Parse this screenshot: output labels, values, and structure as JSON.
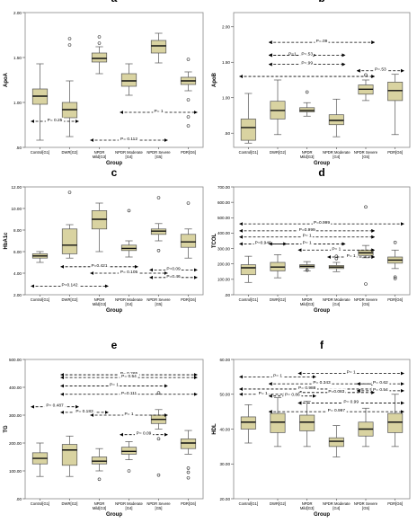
{
  "figure": {
    "group_labels": [
      "Control[G1]",
      "DWR[G2]",
      "NPDR Mild[G3]",
      "NPDR Moderate [G4]",
      "NPDR Severe [G5]",
      "PDR[G6]"
    ],
    "group_axis_label": "Group"
  },
  "colors": {
    "box_fill": "#d9d3a1",
    "box_stroke": "#555555",
    "median": "#111111",
    "plot_bg": "#ffffff",
    "arrow": "#000000"
  },
  "chart_data": [
    {
      "panel": "a",
      "type": "box",
      "ylabel": "ApoA",
      "ylim": [
        0.5,
        2.0
      ],
      "ticks": [
        0.5,
        1.0,
        1.5,
        2.0
      ],
      "tick_labels": [
        ".50",
        "1.00",
        "1.50",
        "2.00"
      ],
      "boxes": [
        {
          "min": 0.58,
          "q1": 0.98,
          "median": 1.07,
          "q3": 1.15,
          "max": 1.43
        },
        {
          "min": 0.62,
          "q1": 0.83,
          "median": 0.92,
          "q3": 1.0,
          "max": 1.24,
          "outliers": [
            1.64,
            1.71
          ]
        },
        {
          "min": 1.32,
          "q1": 1.45,
          "median": 1.49,
          "q3": 1.55,
          "max": 1.62,
          "outliers": [
            1.66,
            1.73
          ]
        },
        {
          "min": 1.08,
          "q1": 1.18,
          "median": 1.24,
          "q3": 1.32,
          "max": 1.43
        },
        {
          "min": 1.44,
          "q1": 1.55,
          "median": 1.63,
          "q3": 1.69,
          "max": 1.77
        },
        {
          "min": 1.13,
          "q1": 1.2,
          "median": 1.24,
          "q3": 1.28,
          "max": 1.34,
          "outliers": [
            1.48,
            1.03,
            0.84,
            0.74
          ]
        }
      ],
      "comparisons": [
        {
          "label": "P= 0.25",
          "from": 0,
          "to": 1,
          "y": 0.79
        },
        {
          "label": "P= 0.112",
          "from": 2,
          "to": 4,
          "y": 0.58
        },
        {
          "label": "P= 1",
          "from": 3,
          "to": 5,
          "y": 0.89
        }
      ]
    },
    {
      "panel": "b",
      "type": "box",
      "ylabel": "ApoB",
      "ylim": [
        0.3,
        2.2
      ],
      "ticks": [
        0.5,
        1.0,
        1.5,
        2.0
      ],
      "tick_labels": [
        ".50",
        "1.00",
        "1.50",
        "2.00"
      ],
      "boxes": [
        {
          "min": 0.36,
          "q1": 0.4,
          "median": 0.58,
          "q3": 0.7,
          "max": 1.06
        },
        {
          "min": 0.48,
          "q1": 0.7,
          "median": 0.82,
          "q3": 0.95,
          "max": 1.25
        },
        {
          "min": 0.74,
          "q1": 0.8,
          "median": 0.82,
          "q3": 0.86,
          "max": 0.93,
          "outliers": [
            1.08
          ]
        },
        {
          "min": 0.45,
          "q1": 0.62,
          "median": 0.68,
          "q3": 0.76,
          "max": 0.98
        },
        {
          "min": 0.96,
          "q1": 1.05,
          "median": 1.12,
          "q3": 1.18,
          "max": 1.25,
          "outliers": [
            1.32
          ]
        },
        {
          "min": 0.48,
          "q1": 0.96,
          "median": 1.1,
          "q3": 1.22,
          "max": 1.33
        }
      ],
      "comparisons": [
        {
          "label": "P=.09",
          "from": 1,
          "to": 4,
          "y": 1.78
        },
        {
          "label": "P=1",
          "from": 1,
          "to": 2,
          "y": 1.6
        },
        {
          "label": "P=.53",
          "from": 1,
          "to": 3,
          "y": 1.6
        },
        {
          "label": "P=.99",
          "from": 1,
          "to": 3,
          "y": 1.47
        },
        {
          "label": "P=.53",
          "from": 4,
          "to": 5,
          "y": 1.38
        },
        {
          "label": "",
          "from": 0,
          "to": 4,
          "y": 1.3
        }
      ]
    },
    {
      "panel": "c",
      "type": "box",
      "ylabel": "HbA1c",
      "ylim": [
        2.0,
        12.0
      ],
      "ticks": [
        2,
        4,
        6,
        8,
        10,
        12
      ],
      "tick_labels": [
        "2.00",
        "4.00",
        "6.00",
        "8.00",
        "10.00",
        "12.00"
      ],
      "boxes": [
        {
          "min": 5.0,
          "q1": 5.4,
          "median": 5.6,
          "q3": 5.8,
          "max": 6.0
        },
        {
          "min": 5.4,
          "q1": 5.8,
          "median": 6.6,
          "q3": 8.1,
          "max": 8.5,
          "outliers": [
            11.5
          ]
        },
        {
          "min": 6.0,
          "q1": 8.1,
          "median": 9.0,
          "q3": 9.8,
          "max": 10.5
        },
        {
          "min": 5.5,
          "q1": 6.1,
          "median": 6.3,
          "q3": 6.6,
          "max": 7.0,
          "outliers": [
            9.8
          ]
        },
        {
          "min": 7.0,
          "q1": 7.6,
          "median": 7.9,
          "q3": 8.1,
          "max": 8.6,
          "outliers": [
            11.0,
            6.1
          ]
        },
        {
          "min": 5.4,
          "q1": 6.4,
          "median": 6.9,
          "q3": 7.6,
          "max": 8.1,
          "outliers": [
            10.5
          ]
        }
      ],
      "comparisons": [
        {
          "label": "P=0.421",
          "from": 1,
          "to": 3,
          "y": 4.6
        },
        {
          "label": "P= 0.105",
          "from": 2,
          "to": 4,
          "y": 4.0
        },
        {
          "label": "P=0.09",
          "from": 4,
          "to": 5,
          "y": 4.3
        },
        {
          "label": "P=0.46",
          "from": 4,
          "to": 5,
          "y": 3.6
        },
        {
          "label": "P=0.142",
          "from": 0,
          "to": 2,
          "y": 2.8
        }
      ]
    },
    {
      "panel": "d",
      "type": "box",
      "ylabel": "TCOL",
      "ylim": [
        0,
        700
      ],
      "ticks": [
        0,
        100,
        200,
        300,
        400,
        500,
        600,
        700
      ],
      "tick_labels": [
        ".00",
        "100.00",
        "200.00",
        "300.00",
        "400.00",
        "500.00",
        "600.00",
        "700.00"
      ],
      "boxes": [
        {
          "min": 80,
          "q1": 130,
          "median": 175,
          "q3": 195,
          "max": 250
        },
        {
          "min": 110,
          "q1": 155,
          "median": 180,
          "q3": 210,
          "max": 260
        },
        {
          "min": 155,
          "q1": 175,
          "median": 185,
          "q3": 195,
          "max": 215,
          "outliers": [
            160
          ]
        },
        {
          "min": 150,
          "q1": 170,
          "median": 180,
          "q3": 190,
          "max": 210,
          "outliers": [
            235,
            250
          ]
        },
        {
          "min": 240,
          "q1": 255,
          "median": 272,
          "q3": 290,
          "max": 320,
          "outliers": [
            570,
            70
          ]
        },
        {
          "min": 170,
          "q1": 205,
          "median": 225,
          "q3": 245,
          "max": 290,
          "outliers": [
            340,
            115,
            105
          ]
        }
      ],
      "comparisons": [
        {
          "label": "P=0.999",
          "from": 0,
          "to": 5,
          "y": 460
        },
        {
          "label": "P=0.999",
          "from": 0,
          "to": 4,
          "y": 415
        },
        {
          "label": "P= 1",
          "from": 0,
          "to": 4,
          "y": 375
        },
        {
          "label": "P=0.946",
          "from": 0,
          "to": 1,
          "y": 330
        },
        {
          "label": "P= 1",
          "from": 1,
          "to": 3,
          "y": 330
        },
        {
          "label": "P= 1",
          "from": 2,
          "to": 4,
          "y": 290
        },
        {
          "label": "P= 1",
          "from": 3,
          "to": 4,
          "y": 245
        }
      ]
    },
    {
      "panel": "e",
      "type": "box",
      "ylabel": "TG",
      "ylim": [
        0,
        500
      ],
      "ticks": [
        0,
        100,
        200,
        300,
        400,
        500
      ],
      "tick_labels": [
        ".00",
        "100.00",
        "200.00",
        "300.00",
        "400.00",
        "500.00"
      ],
      "boxes": [
        {
          "min": 80,
          "q1": 125,
          "median": 145,
          "q3": 165,
          "max": 200
        },
        {
          "min": 80,
          "q1": 120,
          "median": 175,
          "q3": 195,
          "max": 225
        },
        {
          "min": 100,
          "q1": 125,
          "median": 135,
          "q3": 150,
          "max": 180,
          "outliers": [
            70
          ]
        },
        {
          "min": 140,
          "q1": 160,
          "median": 170,
          "q3": 185,
          "max": 205,
          "outliers": [
            100
          ]
        },
        {
          "min": 250,
          "q1": 270,
          "median": 285,
          "q3": 300,
          "max": 320,
          "outliers": [
            380,
            215,
            85
          ]
        },
        {
          "min": 160,
          "q1": 180,
          "median": 200,
          "q3": 215,
          "max": 245,
          "outliers": [
            110,
            95,
            75
          ]
        }
      ],
      "comparisons": [
        {
          "label": "P= 0.265",
          "from": 1,
          "to": 5,
          "y": 445
        },
        {
          "label": "P= 0.54",
          "from": 1,
          "to": 5,
          "y": 435
        },
        {
          "label": "P= 1",
          "from": 1,
          "to": 4,
          "y": 405
        },
        {
          "label": "P=0.111",
          "from": 1,
          "to": 5,
          "y": 375
        },
        {
          "label": "P= 0.487",
          "from": 0,
          "to": 1,
          "y": 330
        },
        {
          "label": "P= 0.183",
          "from": 1,
          "to": 2,
          "y": 310
        },
        {
          "label": "P= 1",
          "from": 2,
          "to": 4,
          "y": 300
        },
        {
          "label": "P= 0.09",
          "from": 3,
          "to": 4,
          "y": 230
        }
      ]
    },
    {
      "panel": "f",
      "type": "box",
      "ylabel": "HDL",
      "ylim": [
        20,
        60
      ],
      "ticks": [
        20,
        30,
        40,
        50,
        60
      ],
      "tick_labels": [
        "20.00",
        "30.00",
        "40.00",
        "50.00",
        "60.00"
      ],
      "boxes": [
        {
          "min": 36,
          "q1": 40,
          "median": 42,
          "q3": 43.5,
          "max": 47
        },
        {
          "min": 35,
          "q1": 39,
          "median": 42,
          "q3": 44.5,
          "max": 49
        },
        {
          "min": 35,
          "q1": 39.5,
          "median": 42,
          "q3": 44,
          "max": 48
        },
        {
          "min": 32,
          "q1": 35,
          "median": 36.5,
          "q3": 37.5,
          "max": 41
        },
        {
          "min": 35,
          "q1": 38,
          "median": 40,
          "q3": 42,
          "max": 46
        },
        {
          "min": 35,
          "q1": 39,
          "median": 42,
          "q3": 44.5,
          "max": 50
        }
      ],
      "comparisons": [
        {
          "label": "P= 1",
          "from": 2,
          "to": 5,
          "y": 56
        },
        {
          "label": "P= 1",
          "from": 0,
          "to": 2,
          "y": 55
        },
        {
          "label": "P= 0.343",
          "from": 1,
          "to": 4,
          "y": 53
        },
        {
          "label": "P= 0.62",
          "from": 4,
          "to": 5,
          "y": 53
        },
        {
          "label": "P= 0.988",
          "from": 0,
          "to": 4,
          "y": 51.5
        },
        {
          "label": "P= 0.54",
          "from": 4,
          "to": 5,
          "y": 51
        },
        {
          "label": "P=0.083",
          "from": 2,
          "to": 4,
          "y": 50.5
        },
        {
          "label": "P= 1",
          "from": 0,
          "to": 1,
          "y": 50
        },
        {
          "label": "P= 0.86",
          "from": 1,
          "to": 2,
          "y": 49.5
        },
        {
          "label": "P= 0.99",
          "from": 2,
          "to": 5,
          "y": 47.5
        },
        {
          "label": "P= 0.997",
          "from": 1,
          "to": 5,
          "y": 45
        }
      ]
    }
  ]
}
